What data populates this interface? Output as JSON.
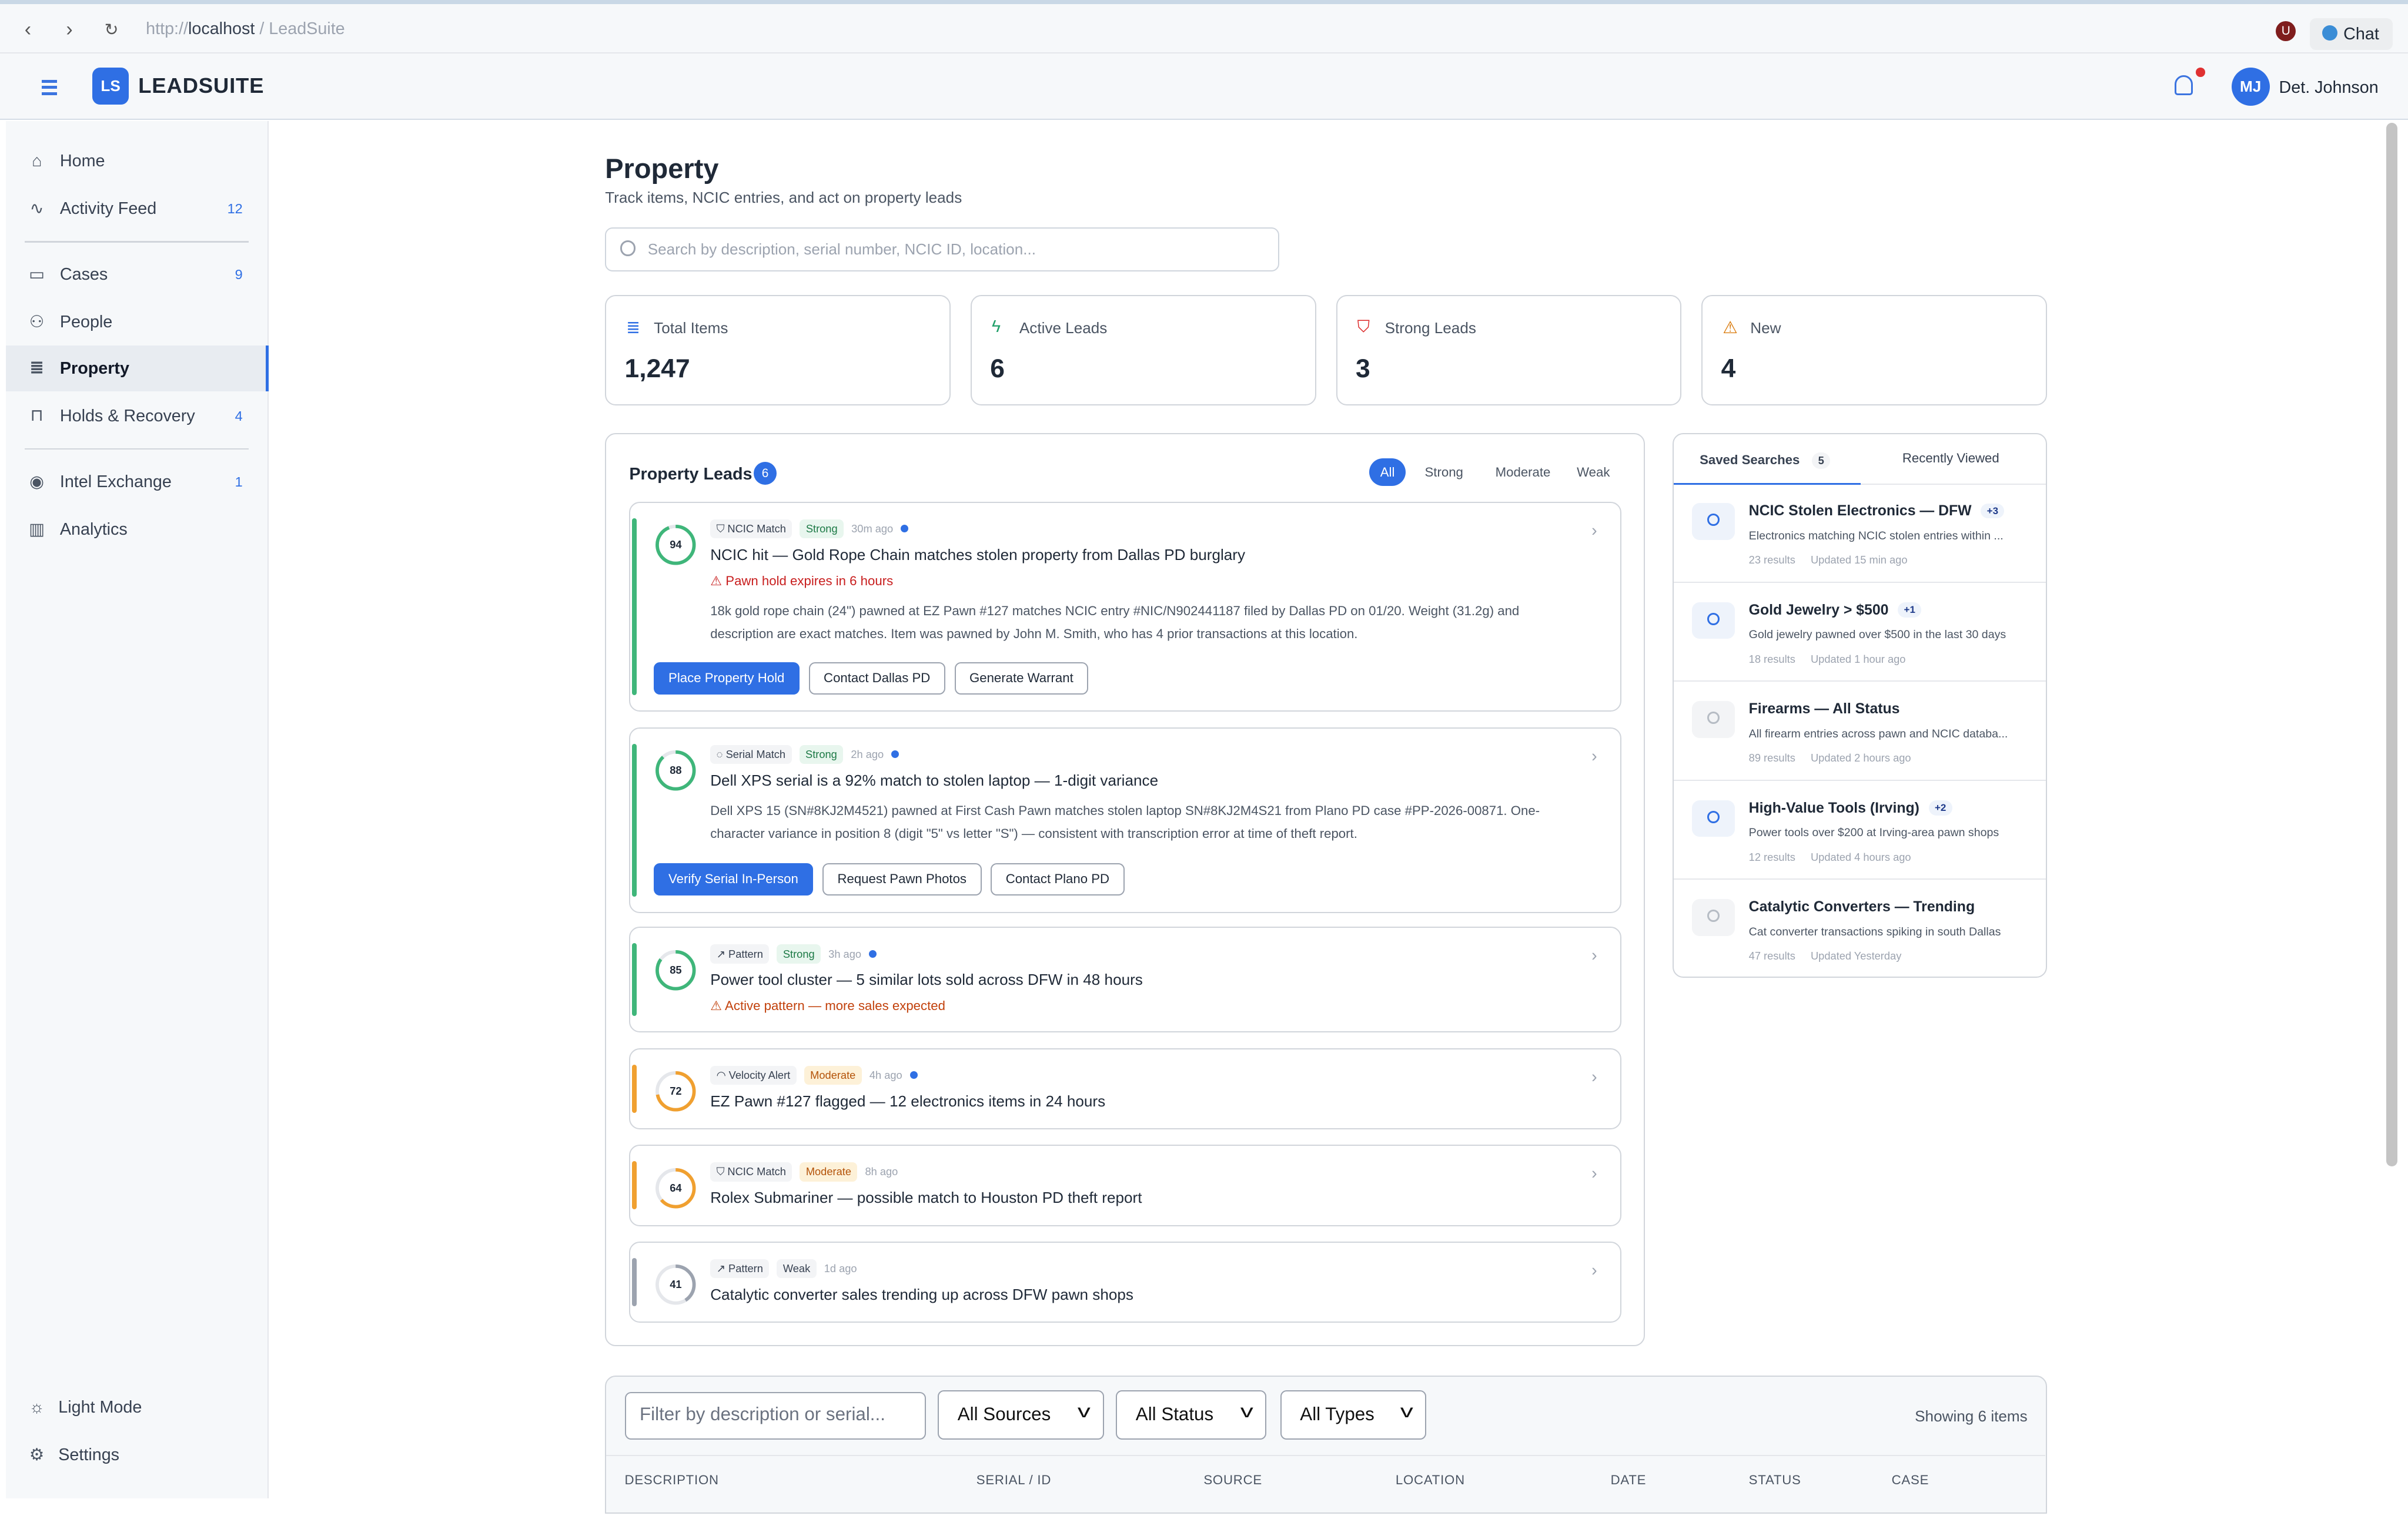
{
  "browser": {
    "url_prefix": "http://",
    "url_host": "localhost",
    "url_path": " / LeadSuite",
    "extension": "U",
    "chat_label": "Chat"
  },
  "header": {
    "logo": "LS",
    "brand": "LEADSUITE",
    "avatar": "MJ",
    "user": "Det. Johnson",
    "has_notification": true
  },
  "sidebar": {
    "items": [
      {
        "label": "Home",
        "icon": "home-icon"
      },
      {
        "label": "Activity Feed",
        "icon": "activity-icon",
        "count": "12"
      },
      {
        "label": "Cases",
        "icon": "folder-icon",
        "count": "9"
      },
      {
        "label": "People",
        "icon": "people-icon"
      },
      {
        "label": "Property",
        "icon": "database-icon",
        "active": true
      },
      {
        "label": "Holds & Recovery",
        "icon": "lock-icon",
        "count": "4"
      },
      {
        "label": "Intel Exchange",
        "icon": "broadcast-icon",
        "count": "1"
      },
      {
        "label": "Analytics",
        "icon": "bar-chart-icon"
      }
    ],
    "bottom": [
      {
        "label": "Light Mode",
        "icon": "sun-icon"
      },
      {
        "label": "Settings",
        "icon": "gear-icon"
      }
    ]
  },
  "page": {
    "title": "Property",
    "subtitle": "Track items, NCIC entries, and act on property leads",
    "search_placeholder": "Search by description, serial number, NCIC ID, location..."
  },
  "stats": [
    {
      "label": "Total Items",
      "value": "1,247",
      "icon": "database-icon",
      "color": "#2f6fe4"
    },
    {
      "label": "Active Leads",
      "value": "6",
      "icon": "lightning-icon",
      "color": "#22a06b"
    },
    {
      "label": "Strong Leads",
      "value": "3",
      "icon": "shield-icon",
      "color": "#dc2626"
    },
    {
      "label": "New",
      "value": "4",
      "icon": "warning-icon",
      "color": "#d97706"
    }
  ],
  "leads": {
    "title": "Property Leads",
    "count": "6",
    "filters": [
      "All",
      "Strong",
      "Moderate",
      "Weak"
    ],
    "active_filter": "All",
    "items": [
      {
        "score": 94,
        "type": "NCIC Match",
        "type_icon": "shield-icon",
        "strength": "Strong",
        "ago": "30m ago",
        "unread": true,
        "title": "NCIC hit — Gold Rope Chain matches stolen property from Dallas PD burglary",
        "warning": "Pawn hold expires in 6 hours",
        "warning_color": "#c81e1e",
        "description": "18k gold rope chain (24\") pawned at EZ Pawn #127 matches NCIC entry #NIC/N902441187 filed by Dallas PD on 01/20. Weight (31.2g) and description are exact matches. Item was pawned by John M. Smith, who has 4 prior transactions at this location.",
        "actions": [
          "Place Property Hold",
          "Contact Dallas PD",
          "Generate Warrant"
        ]
      },
      {
        "score": 88,
        "type": "Serial Match",
        "type_icon": "serial-icon",
        "strength": "Strong",
        "ago": "2h ago",
        "unread": true,
        "title": "Dell XPS serial is a 92% match to stolen laptop — 1-digit variance",
        "description": "Dell XPS 15 (SN#8KJ2M4521) pawned at First Cash Pawn matches stolen laptop SN#8KJ2M4S21 from Plano PD case #PP-2026-00871. One-character variance in position 8 (digit \"5\" vs letter \"S\") — consistent with transcription error at time of theft report.",
        "actions": [
          "Verify Serial In-Person",
          "Request Pawn Photos",
          "Contact Plano PD"
        ]
      },
      {
        "score": 85,
        "type": "Pattern",
        "type_icon": "trend-icon",
        "strength": "Strong",
        "ago": "3h ago",
        "unread": true,
        "title": "Power tool cluster — 5 similar lots sold across DFW in 48 hours",
        "warning": "Active pattern — more sales expected",
        "warning_color": "#c2410c"
      },
      {
        "score": 72,
        "type": "Velocity Alert",
        "type_icon": "gauge-icon",
        "strength": "Moderate",
        "ago": "4h ago",
        "unread": true,
        "title": "EZ Pawn #127 flagged — 12 electronics items in 24 hours"
      },
      {
        "score": 64,
        "type": "NCIC Match",
        "type_icon": "shield-icon",
        "strength": "Moderate",
        "ago": "8h ago",
        "unread": false,
        "title": "Rolex Submariner — possible match to Houston PD theft report"
      },
      {
        "score": 41,
        "type": "Pattern",
        "type_icon": "trend-icon",
        "strength": "Weak",
        "ago": "1d ago",
        "unread": false,
        "title": "Catalytic converter sales trending up across DFW pawn shops"
      }
    ]
  },
  "saved": {
    "tab_saved": "Saved Searches",
    "saved_count": "5",
    "tab_recent": "Recently Viewed",
    "items": [
      {
        "name": "NCIC Stolen Electronics — DFW",
        "badge": "+3",
        "desc": "Electronics matching NCIC stolen entries within ...",
        "results": "23 results",
        "updated": "Updated 15 min ago",
        "active": true
      },
      {
        "name": "Gold Jewelry > $500",
        "badge": "+1",
        "desc": "Gold jewelry pawned over $500 in the last 30 days",
        "results": "18 results",
        "updated": "Updated 1 hour ago",
        "active": true
      },
      {
        "name": "Firearms — All Status",
        "desc": "All firearm entries across pawn and NCIC databa...",
        "results": "89 results",
        "updated": "Updated 2 hours ago",
        "active": false
      },
      {
        "name": "High-Value Tools (Irving)",
        "badge": "+2",
        "desc": "Power tools over $200 at Irving-area pawn shops",
        "results": "12 results",
        "updated": "Updated 4 hours ago",
        "active": true
      },
      {
        "name": "Catalytic Converters — Trending",
        "desc": "Cat converter transactions spiking in south Dallas",
        "results": "47 results",
        "updated": "Updated Yesterday",
        "active": false
      }
    ]
  },
  "table": {
    "filter_placeholder": "Filter by description or serial...",
    "sources": "All Sources",
    "status": "All Status",
    "types": "All Types",
    "showing": "Showing 6 items",
    "columns": [
      "DESCRIPTION",
      "SERIAL / ID",
      "SOURCE",
      "LOCATION",
      "DATE",
      "STATUS",
      "CASE"
    ]
  }
}
